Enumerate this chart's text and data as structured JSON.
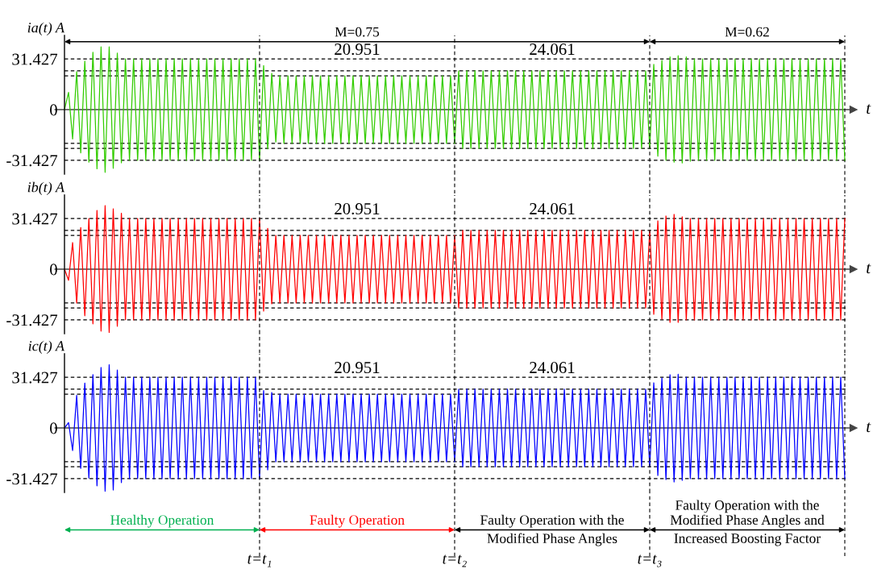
{
  "chart_data": [
    {
      "type": "line",
      "ylabel": "ia(t) A",
      "xlabel": "t",
      "ylim": [
        -40,
        46
      ],
      "yticks": [
        -31.427,
        0,
        31.427
      ],
      "grid": "x",
      "line_style": "solid",
      "tick_labels": "y",
      "categories": [
        null,
        null,
        null,
        null,
        null,
        null,
        null,
        null,
        null,
        null,
        null,
        null,
        null,
        null,
        null,
        null,
        null,
        null,
        null,
        null,
        null,
        null,
        null,
        null,
        null,
        null,
        null,
        null,
        null,
        null,
        null,
        null,
        null,
        null,
        null,
        null,
        null,
        null,
        null,
        null,
        null,
        null,
        null,
        null,
        null,
        null,
        null,
        null,
        null,
        null,
        null,
        null,
        null,
        null,
        null,
        null,
        null,
        null,
        null,
        null,
        null,
        null,
        null,
        null,
        null,
        null,
        null,
        null,
        null,
        null,
        null,
        null,
        null,
        null,
        null,
        null,
        null,
        null,
        null,
        null,
        null,
        null,
        null,
        null,
        null,
        null,
        null,
        null,
        null,
        null,
        null,
        null,
        null,
        null,
        null,
        null,
        null,
        null,
        null,
        null,
        null,
        null,
        null,
        null,
        null,
        null,
        null,
        null,
        null,
        null,
        null,
        null,
        null,
        null,
        null,
        null,
        null,
        null,
        null,
        null,
        null,
        null,
        null,
        null,
        null,
        null,
        null,
        null,
        null,
        null,
        null,
        null,
        null,
        null,
        null,
        null,
        null,
        null,
        null,
        null,
        null,
        null,
        null,
        null,
        null,
        null,
        null,
        null,
        null,
        null,
        null,
        null,
        null,
        null,
        null,
        null,
        null,
        null,
        null,
        null,
        null,
        null,
        null,
        null,
        null,
        null,
        null,
        null,
        null,
        null,
        null,
        null,
        null,
        null,
        null,
        null,
        null,
        null,
        null,
        null,
        null,
        null,
        null,
        null,
        null,
        null,
        null,
        null,
        null,
        null,
        null,
        null,
        null
      ],
      "series": [
        {
          "color": "#33cc00",
          "values": [
            0,
            10.7,
            -18.2,
            23.5,
            -26.8,
            30.1,
            -32.6,
            35.6,
            -36.7,
            38.9,
            -38.9,
            38.9,
            -36.4,
            35.1,
            -33,
            31.427,
            -31.427,
            31.427,
            -31.427,
            31.427,
            -31.427,
            31.427,
            -31.427,
            31.427,
            -31.427,
            31.427,
            -31.427,
            31.427,
            -31.427,
            31.427,
            -31.427,
            31.427,
            -31.427,
            31.427,
            -31.427,
            31.427,
            -31.427,
            31.427,
            -31.427,
            31.427,
            -31.427,
            31.427,
            -31.427,
            31.427,
            -31.427,
            31.427,
            -31.427,
            31.427,
            -31.427,
            27.3,
            -24.3,
            22.5,
            -20.1,
            20.951,
            -20.951,
            20.951,
            -20.951,
            20.951,
            -20.951,
            20.951,
            -20.951,
            20.951,
            -20.951,
            20.951,
            -20.951,
            20.951,
            -20.951,
            20.951,
            -20.951,
            20.951,
            -20.951,
            20.951,
            -20.951,
            20.951,
            -20.951,
            20.951,
            -20.951,
            20.951,
            -20.951,
            20.951,
            -20.951,
            20.951,
            -20.951,
            20.951,
            -20.951,
            20.951,
            -20.951,
            20.951,
            -20.951,
            20.951,
            -20.951,
            20.951,
            -20.951,
            20.951,
            -20.951,
            20.951,
            -20.951,
            24.061,
            -24.061,
            24.061,
            -24.061,
            24.061,
            -24.061,
            24.061,
            -24.061,
            24.061,
            -24.061,
            24.061,
            -24.061,
            24.061,
            -24.061,
            24.061,
            -24.061,
            24.061,
            -24.061,
            24.061,
            -24.061,
            24.061,
            -24.061,
            24.061,
            -24.061,
            24.061,
            -24.061,
            24.061,
            -24.061,
            24.061,
            -24.061,
            24.061,
            -24.061,
            24.061,
            -24.061,
            24.061,
            -24.061,
            24.061,
            -24.061,
            24.061,
            -24.061,
            24.061,
            -24.061,
            24.061,
            -24.061,
            24.061,
            -24.061,
            24.061,
            -24.061,
            28.1,
            -28.9,
            30.6,
            -31.4,
            32.7,
            -32.6,
            33.4,
            -33.1,
            32.7,
            -32,
            31.427,
            -31.427,
            31.427,
            -31.427,
            31.427,
            -31.427,
            31.427,
            -31.427,
            31.427,
            -31.427,
            31.427,
            -31.427,
            31.427,
            -31.427,
            31.427,
            -31.427,
            31.427,
            -31.427,
            31.427,
            -31.427,
            31.427,
            -31.427,
            31.427,
            -31.427,
            31.427,
            -31.427,
            31.427,
            -31.427,
            31.427,
            -31.427,
            31.427,
            -31.427,
            31.427,
            -31.427,
            31.427,
            -31.427,
            31.427,
            -31.427
          ]
        }
      ],
      "ref_lines": [
        {
          "axis": "y",
          "value": 31.427,
          "color": "#000000",
          "line_style": "dashed"
        },
        {
          "axis": "y",
          "value": 24.061,
          "color": "#000000",
          "line_style": "dashed",
          "label": "24.061"
        },
        {
          "axis": "y",
          "value": 20.951,
          "color": "#000000",
          "line_style": "dashed",
          "label": "20.951"
        },
        {
          "axis": "y",
          "value": -20.951,
          "color": "#000000",
          "line_style": "dashed"
        },
        {
          "axis": "y",
          "value": -24.061,
          "color": "#000000",
          "line_style": "dashed"
        },
        {
          "axis": "y",
          "value": -31.427,
          "color": "#000000",
          "line_style": "dashed"
        }
      ],
      "annotations": [
        "M=0.75",
        "M=0.62"
      ]
    },
    {
      "type": "line",
      "ylabel": "ib(t) A",
      "xlabel": "t",
      "ylim": [
        -40,
        46
      ],
      "yticks": [
        -31.427,
        0,
        31.427
      ],
      "grid": "x",
      "line_style": "solid",
      "tick_labels": "y",
      "categories": [
        null,
        null,
        null,
        null,
        null,
        null,
        null,
        null,
        null,
        null,
        null,
        null,
        null,
        null,
        null,
        null,
        null,
        null,
        null,
        null,
        null,
        null,
        null,
        null,
        null,
        null,
        null,
        null,
        null,
        null,
        null,
        null,
        null,
        null,
        null,
        null,
        null,
        null,
        null,
        null,
        null,
        null,
        null,
        null,
        null,
        null,
        null,
        null,
        null,
        null,
        null,
        null,
        null,
        null,
        null,
        null,
        null,
        null,
        null,
        null,
        null,
        null,
        null,
        null,
        null,
        null,
        null,
        null,
        null,
        null,
        null,
        null,
        null,
        null,
        null,
        null,
        null,
        null,
        null,
        null,
        null,
        null,
        null,
        null,
        null,
        null,
        null,
        null,
        null,
        null,
        null,
        null,
        null,
        null,
        null,
        null,
        null,
        null,
        null,
        null,
        null,
        null,
        null,
        null,
        null,
        null,
        null,
        null,
        null,
        null,
        null,
        null,
        null,
        null,
        null,
        null,
        null,
        null,
        null,
        null,
        null,
        null,
        null,
        null,
        null,
        null,
        null,
        null,
        null,
        null,
        null,
        null,
        null,
        null,
        null,
        null,
        null,
        null,
        null,
        null,
        null,
        null,
        null,
        null,
        null,
        null,
        null,
        null,
        null,
        null,
        null,
        null,
        null,
        null,
        null,
        null,
        null,
        null,
        null,
        null,
        null,
        null,
        null,
        null,
        null,
        null,
        null,
        null,
        null,
        null,
        null,
        null,
        null,
        null,
        null,
        null,
        null,
        null,
        null,
        null,
        null,
        null,
        null,
        null,
        null,
        null,
        null,
        null,
        null,
        null,
        null,
        null,
        null
      ],
      "series": [
        {
          "color": "#ff0000",
          "values": [
            0,
            -6.9,
            16.5,
            -21,
            25.8,
            -28.9,
            31.4,
            -33.9,
            36.4,
            -38.4,
            39.4,
            -39.2,
            37.4,
            -35.4,
            34.7,
            -31.3,
            31.427,
            -31.427,
            31.427,
            -31.427,
            31.427,
            -31.427,
            31.427,
            -31.427,
            31.427,
            -31.427,
            31.427,
            -31.427,
            31.427,
            -31.427,
            31.427,
            -31.427,
            31.427,
            -31.427,
            31.427,
            -31.427,
            31.427,
            -31.427,
            31.427,
            -31.427,
            31.427,
            -31.427,
            31.427,
            -31.427,
            31.427,
            -31.427,
            31.427,
            -31.427,
            31.427,
            -26,
            25.3,
            -21.5,
            20.951,
            -20.951,
            20.951,
            -20.951,
            20.951,
            -20.951,
            20.951,
            -20.951,
            20.951,
            -20.951,
            20.951,
            -20.951,
            20.951,
            -20.951,
            20.951,
            -20.951,
            20.951,
            -20.951,
            20.951,
            -20.951,
            20.951,
            -20.951,
            20.951,
            -20.951,
            20.951,
            -20.951,
            20.951,
            -20.951,
            20.951,
            -20.951,
            20.951,
            -20.951,
            20.951,
            -20.951,
            20.951,
            -20.951,
            20.951,
            -20.951,
            20.951,
            -20.951,
            20.951,
            -20.951,
            20.951,
            -20.951,
            20.951,
            -24.061,
            24.061,
            -24.061,
            24.061,
            -24.061,
            24.061,
            -24.061,
            24.061,
            -24.061,
            24.061,
            -24.061,
            24.061,
            -24.061,
            24.061,
            -24.061,
            24.061,
            -24.061,
            24.061,
            -24.061,
            24.061,
            -24.061,
            24.061,
            -24.061,
            24.061,
            -24.061,
            24.061,
            -24.061,
            24.061,
            -24.061,
            24.061,
            -24.061,
            24.061,
            -24.061,
            24.061,
            -24.061,
            24.061,
            -24.061,
            24.061,
            -24.061,
            24.061,
            -24.061,
            24.061,
            -24.061,
            24.061,
            -24.061,
            24.061,
            -24.061,
            24.061,
            -28,
            30,
            -31,
            33,
            -33,
            34,
            -33,
            32.5,
            -31.427,
            31.427,
            -31.427,
            31.427,
            -31.427,
            31.427,
            -31.427,
            31.427,
            -31.427,
            31.427,
            -31.427,
            31.427,
            -31.427,
            31.427,
            -31.427,
            31.427,
            -31.427,
            31.427,
            -31.427,
            31.427,
            -31.427,
            31.427,
            -31.427,
            31.427,
            -31.427,
            31.427,
            -31.427,
            31.427,
            -31.427,
            31.427,
            -31.427,
            31.427,
            -31.427,
            31.427,
            -31.427,
            31.427,
            -31.427,
            31.427,
            -31.427,
            31.427
          ]
        }
      ],
      "ref_lines": [
        {
          "axis": "y",
          "value": 31.427,
          "color": "#000000",
          "line_style": "dashed"
        },
        {
          "axis": "y",
          "value": 24.061,
          "color": "#000000",
          "line_style": "dashed",
          "label": "24.061"
        },
        {
          "axis": "y",
          "value": 20.951,
          "color": "#000000",
          "line_style": "dashed",
          "label": "20.951"
        },
        {
          "axis": "y",
          "value": -20.951,
          "color": "#000000",
          "line_style": "dashed"
        },
        {
          "axis": "y",
          "value": -24.061,
          "color": "#000000",
          "line_style": "dashed"
        },
        {
          "axis": "y",
          "value": -31.427,
          "color": "#000000",
          "line_style": "dashed"
        }
      ]
    },
    {
      "type": "line",
      "ylabel": "ic(t) A",
      "xlabel": "t",
      "ylim": [
        -40,
        46
      ],
      "yticks": [
        -31.427,
        0,
        31.427
      ],
      "grid": "x",
      "line_style": "solid",
      "categories": [
        null,
        null,
        null,
        null,
        null,
        null,
        null,
        null,
        null,
        null,
        null,
        null,
        null,
        null,
        null,
        null,
        null,
        null,
        null,
        null,
        null,
        null,
        null,
        null,
        null,
        null,
        null,
        null,
        null,
        null,
        null,
        null,
        null,
        null,
        null,
        null,
        null,
        null,
        null,
        null,
        null,
        null,
        null,
        null,
        null,
        null,
        null,
        null,
        "t=t₁",
        null,
        null,
        null,
        null,
        null,
        null,
        null,
        null,
        null,
        null,
        null,
        null,
        null,
        null,
        null,
        null,
        null,
        null,
        null,
        null,
        null,
        null,
        null,
        null,
        null,
        null,
        null,
        null,
        null,
        null,
        null,
        null,
        null,
        null,
        null,
        null,
        null,
        null,
        null,
        null,
        null,
        null,
        null,
        null,
        null,
        null,
        null,
        "t=t₂",
        null,
        null,
        null,
        null,
        null,
        null,
        null,
        null,
        null,
        null,
        null,
        null,
        null,
        null,
        null,
        null,
        null,
        null,
        null,
        null,
        null,
        null,
        null,
        null,
        null,
        null,
        null,
        null,
        null,
        null,
        null,
        null,
        null,
        null,
        null,
        null,
        null,
        null,
        null,
        null,
        null,
        null,
        null,
        null,
        null,
        null,
        null,
        "t=t₃",
        null,
        null,
        null,
        null,
        null,
        null,
        null,
        null,
        null,
        null,
        null,
        null,
        null,
        null,
        null,
        null,
        null,
        null,
        null,
        null,
        null,
        null,
        null,
        null,
        null,
        null,
        null,
        null,
        null,
        null,
        null,
        null,
        null,
        null,
        null,
        null,
        null,
        null,
        null,
        null,
        null,
        null,
        null,
        null,
        null,
        null,
        null,
        null
      ],
      "series": [
        {
          "color": "#0000ff",
          "values": [
            0,
            3.3,
            -14,
            20.2,
            -25.1,
            27.8,
            -31.1,
            33.1,
            -35.9,
            37.5,
            -39.2,
            39.2,
            -38.5,
            35.9,
            -33.9,
            31.427,
            -31.427,
            31.427,
            -31.427,
            31.427,
            -31.427,
            31.427,
            -31.427,
            31.427,
            -31.427,
            31.427,
            -31.427,
            31.427,
            -31.427,
            31.427,
            -31.427,
            31.427,
            -31.427,
            31.427,
            -31.427,
            31.427,
            -31.427,
            31.427,
            -31.427,
            31.427,
            -31.427,
            31.427,
            -31.427,
            31.427,
            -31.427,
            31.427,
            -31.427,
            31.427,
            -31.427,
            23.2,
            -26,
            22,
            -21,
            20.951,
            -20.951,
            20.951,
            -20.951,
            20.951,
            -20.951,
            20.951,
            -20.951,
            20.951,
            -20.951,
            20.951,
            -20.951,
            20.951,
            -20.951,
            20.951,
            -20.951,
            20.951,
            -20.951,
            20.951,
            -20.951,
            20.951,
            -20.951,
            20.951,
            -20.951,
            20.951,
            -20.951,
            20.951,
            -20.951,
            20.951,
            -20.951,
            20.951,
            -20.951,
            20.951,
            -20.951,
            20.951,
            -20.951,
            20.951,
            -20.951,
            20.951,
            -20.951,
            20.951,
            -20.951,
            20.951,
            -20.951,
            24.061,
            -24.061,
            24.061,
            -24.061,
            24.061,
            -24.061,
            24.061,
            -24.061,
            24.061,
            -24.061,
            24.061,
            -24.061,
            24.061,
            -24.061,
            24.061,
            -24.061,
            24.061,
            -24.061,
            24.061,
            -24.061,
            24.061,
            -24.061,
            24.061,
            -24.061,
            24.061,
            -24.061,
            24.061,
            -24.061,
            24.061,
            -24.061,
            24.061,
            -24.061,
            24.061,
            -24.061,
            24.061,
            -24.061,
            24.061,
            -24.061,
            24.061,
            -24.061,
            24.061,
            -24.061,
            24.061,
            -24.061,
            24.061,
            -24.061,
            24.061,
            -24.061,
            28,
            -29.5,
            31,
            -32,
            33,
            -33.5,
            33.3,
            -32.5,
            31.427,
            -31.427,
            31.427,
            -31.427,
            31.427,
            -31.427,
            31.427,
            -31.427,
            31.427,
            -31.427,
            31.427,
            -31.427,
            31.427,
            -31.427,
            31.427,
            -31.427,
            31.427,
            -31.427,
            31.427,
            -31.427,
            31.427,
            -31.427,
            31.427,
            -31.427,
            31.427,
            -31.427,
            31.427,
            -31.427,
            31.427,
            -31.427,
            31.427,
            -31.427,
            31.427,
            -31.427,
            31.427,
            -31.427,
            31.427,
            -31.427,
            31.427,
            -31.427
          ]
        }
      ],
      "ref_lines": [
        {
          "axis": "y",
          "value": 31.427,
          "color": "#000000",
          "line_style": "dashed"
        },
        {
          "axis": "y",
          "value": 24.061,
          "color": "#000000",
          "line_style": "dashed",
          "label": "24.061"
        },
        {
          "axis": "y",
          "value": 20.951,
          "color": "#000000",
          "line_style": "dashed",
          "label": "20.951"
        },
        {
          "axis": "y",
          "value": -20.951,
          "color": "#000000",
          "line_style": "dashed"
        },
        {
          "axis": "y",
          "value": -24.061,
          "color": "#000000",
          "line_style": "dashed"
        },
        {
          "axis": "y",
          "value": -31.427,
          "color": "#000000",
          "line_style": "dashed"
        }
      ],
      "annotations": [
        "Healthy Operation",
        "Faulty Operation",
        "Faulty Operation with the\nModified Phase Angles",
        "Faulty Operation with the\nModified Phase Angles and\nIncreased Boosting Factor"
      ]
    }
  ]
}
